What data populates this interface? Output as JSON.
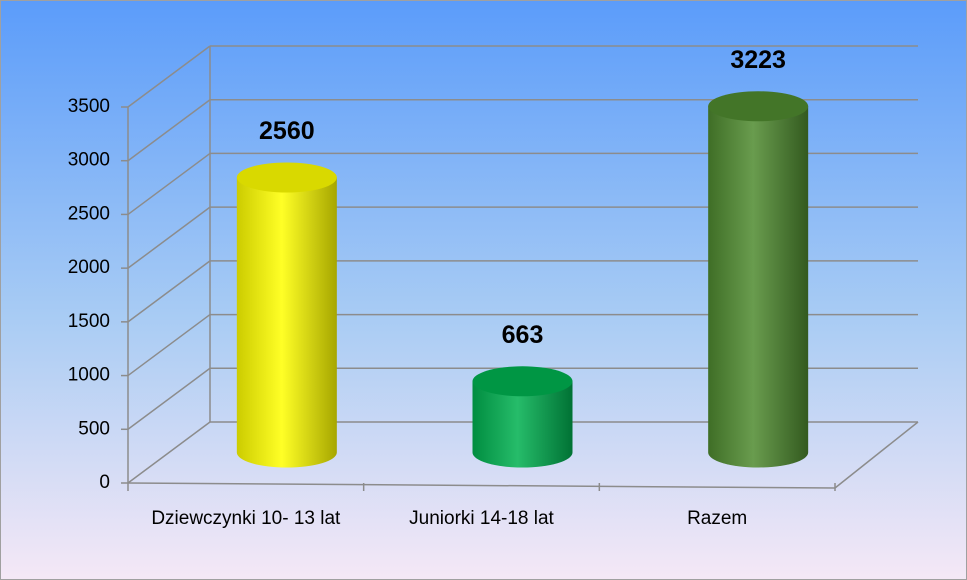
{
  "chart_data": {
    "type": "bar3d",
    "categories": [
      "Dziewczynki 10- 13 lat",
      "Juniorki 14-18 lat",
      "Razem"
    ],
    "values": [
      2560,
      663,
      3223
    ],
    "colors": [
      "#ffff00",
      "#00b050",
      "#4f8a2f"
    ],
    "ylim": [
      0,
      3500
    ],
    "yticks": [
      0,
      500,
      1000,
      1500,
      2000,
      2500,
      3000,
      3500
    ],
    "grid": true
  }
}
